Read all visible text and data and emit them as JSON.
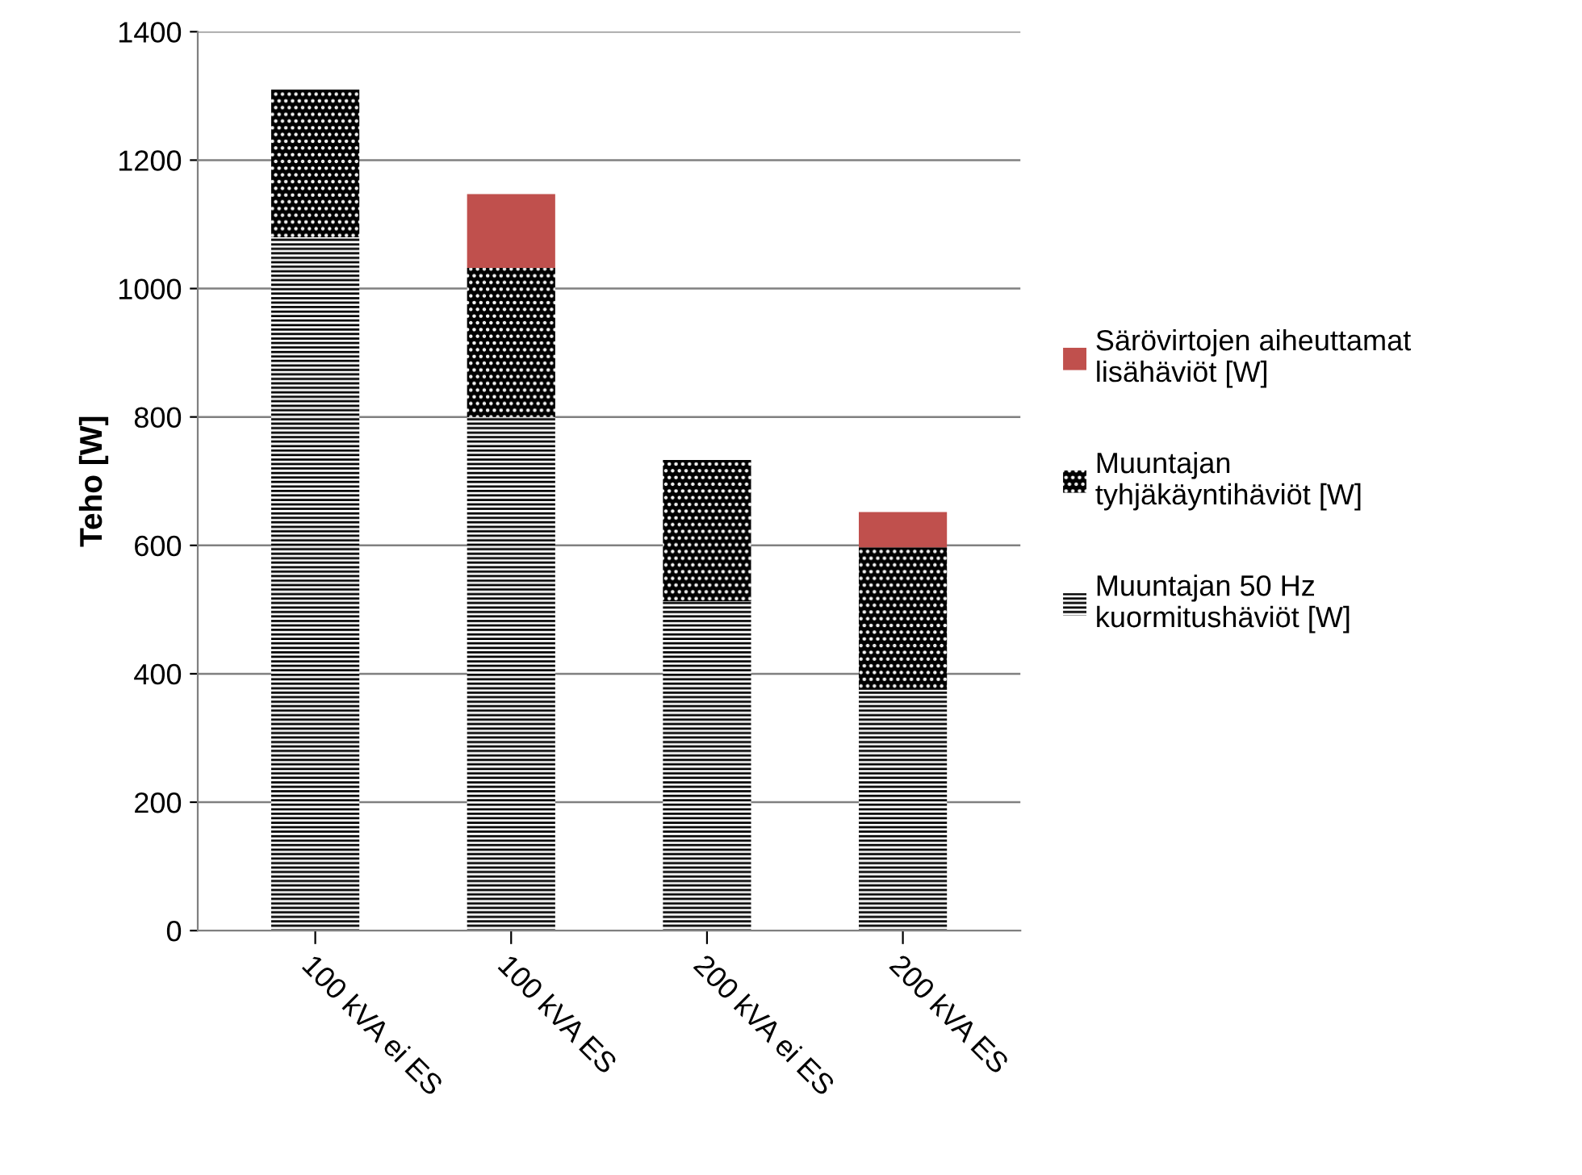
{
  "chart_data": {
    "type": "bar",
    "stacked": true,
    "ylabel": "Teho [W]",
    "categories": [
      "100 kVA ei ES",
      "100 kVA ES",
      "200 kVA ei ES",
      "200 kVA ES"
    ],
    "series": [
      {
        "name": "Muuntajan 50 Hz kuormitushäviöt [W]",
        "color": "#000000",
        "values": [
          1080,
          800,
          513,
          375
        ]
      },
      {
        "name": "Muuntajan tyhjäkäyntihäviöt [W]",
        "color": "#000000",
        "values": [
          230,
          232,
          220,
          222
        ]
      },
      {
        "name": "Särövirtojen aiheuttamat lisähäviöt [W]",
        "color": "#c0504d",
        "values": [
          null,
          115,
          null,
          55
        ]
      }
    ],
    "ylim": [
      0,
      1400
    ],
    "yticks": [
      0,
      200,
      400,
      600,
      800,
      1000,
      1200,
      1400
    ],
    "grid": "y",
    "legend": "right"
  }
}
